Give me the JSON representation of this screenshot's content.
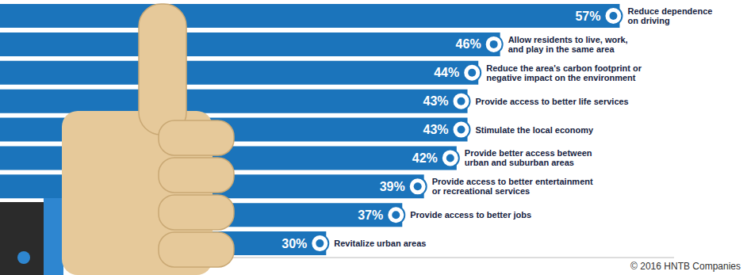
{
  "chart_data": {
    "type": "bar",
    "orientation": "horizontal",
    "categories": [
      "Reduce dependence on driving",
      "Allow residents to live, work, and play in the same area",
      "Reduce the area's carbon footprint or negative impact on the environment",
      "Provide access to better life services",
      "Stimulate the local economy",
      "Provide better access between urban and suburban areas",
      "Provide access to better entertainment or recreational services",
      "Provide access to better jobs",
      "Revitalize urban areas"
    ],
    "values": [
      57,
      46,
      44,
      43,
      43,
      42,
      39,
      37,
      30
    ],
    "value_labels": [
      "57%",
      "46%",
      "44%",
      "43%",
      "43%",
      "42%",
      "39%",
      "37%",
      "30%"
    ],
    "color": "#1b74bb",
    "xlim": [
      0,
      62
    ],
    "tick_labels": false,
    "data_labels": true,
    "grid": false,
    "annotations": [
      "© 2016 HNTB Companies"
    ]
  }
}
